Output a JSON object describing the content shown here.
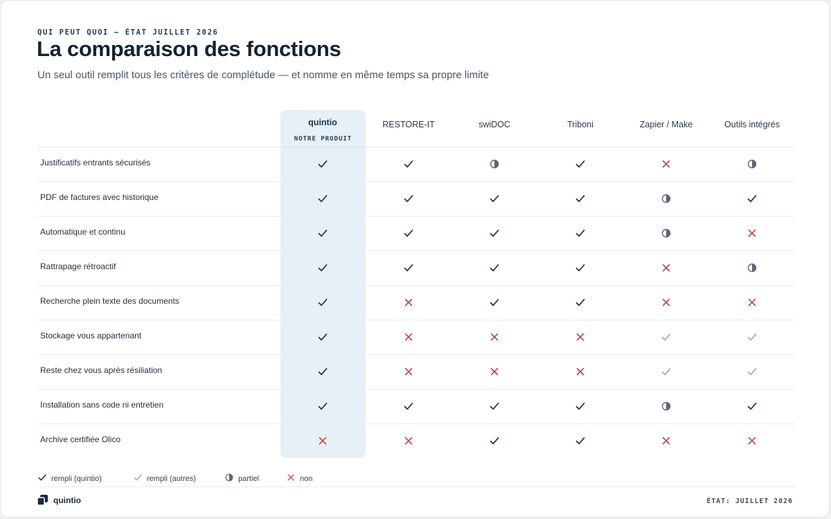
{
  "header": {
    "eyebrow": "QUI PEUT QUOI — ÉTAT JUILLET 2026",
    "title": "La comparaison des fonctions",
    "subtitle": "Un seul outil remplit tous les critères de complétude — et nomme en même temps sa propre limite"
  },
  "table": {
    "columns": [
      {
        "label": "quintio",
        "badge": "NOTRE PRODUIT"
      },
      {
        "label": "RESTORE-IT"
      },
      {
        "label": "swiDOC"
      },
      {
        "label": "Triboni"
      },
      {
        "label": "Zapier / Make"
      },
      {
        "label": "Outils intégrés"
      }
    ],
    "rows": [
      {
        "label": "Justificatifs entrants sécurisés",
        "values": [
          "check-primary",
          "check-primary",
          "partial",
          "check-primary",
          "no",
          "partial"
        ]
      },
      {
        "label": "PDF de factures avec historique",
        "values": [
          "check-primary",
          "check-primary",
          "check-primary",
          "check-primary",
          "partial",
          "check-primary"
        ]
      },
      {
        "label": "Automatique et continu",
        "values": [
          "check-primary",
          "check-primary",
          "check-primary",
          "check-primary",
          "partial",
          "no"
        ]
      },
      {
        "label": "Rattrapage rétroactif",
        "values": [
          "check-primary",
          "check-primary",
          "check-primary",
          "check-primary",
          "no",
          "partial"
        ]
      },
      {
        "label": "Recherche plein texte des documents",
        "values": [
          "check-primary",
          "no",
          "check-primary",
          "check-primary",
          "no",
          "no"
        ]
      },
      {
        "label": "Stockage vous appartenant",
        "values": [
          "check-primary",
          "no",
          "no",
          "no",
          "check-other",
          "check-other"
        ]
      },
      {
        "label": "Reste chez vous après résiliation",
        "values": [
          "check-primary",
          "no",
          "no",
          "no",
          "check-other",
          "check-other"
        ]
      },
      {
        "label": "Installation sans code ni entretien",
        "values": [
          "check-primary",
          "check-primary",
          "check-primary",
          "check-primary",
          "partial",
          "check-primary"
        ]
      },
      {
        "label": "Archive certifiée Olico",
        "values": [
          "no",
          "no",
          "check-primary",
          "check-primary",
          "no",
          "no"
        ]
      }
    ]
  },
  "legend": [
    {
      "icon": "check-primary",
      "label": "rempli (quintio)"
    },
    {
      "icon": "check-other",
      "label": "rempli (autres)"
    },
    {
      "icon": "partial",
      "label": "partiel"
    },
    {
      "icon": "no",
      "label": "non"
    }
  ],
  "footer": {
    "logo_name": "quintio",
    "status": "ÉTAT: JUILLET 2026"
  },
  "colors": {
    "check_primary": "#1f3a52",
    "check_other": "#9aa3ab",
    "partial": "#5b6774",
    "no": "#c0453f",
    "highlight": "#e6f0f6"
  }
}
